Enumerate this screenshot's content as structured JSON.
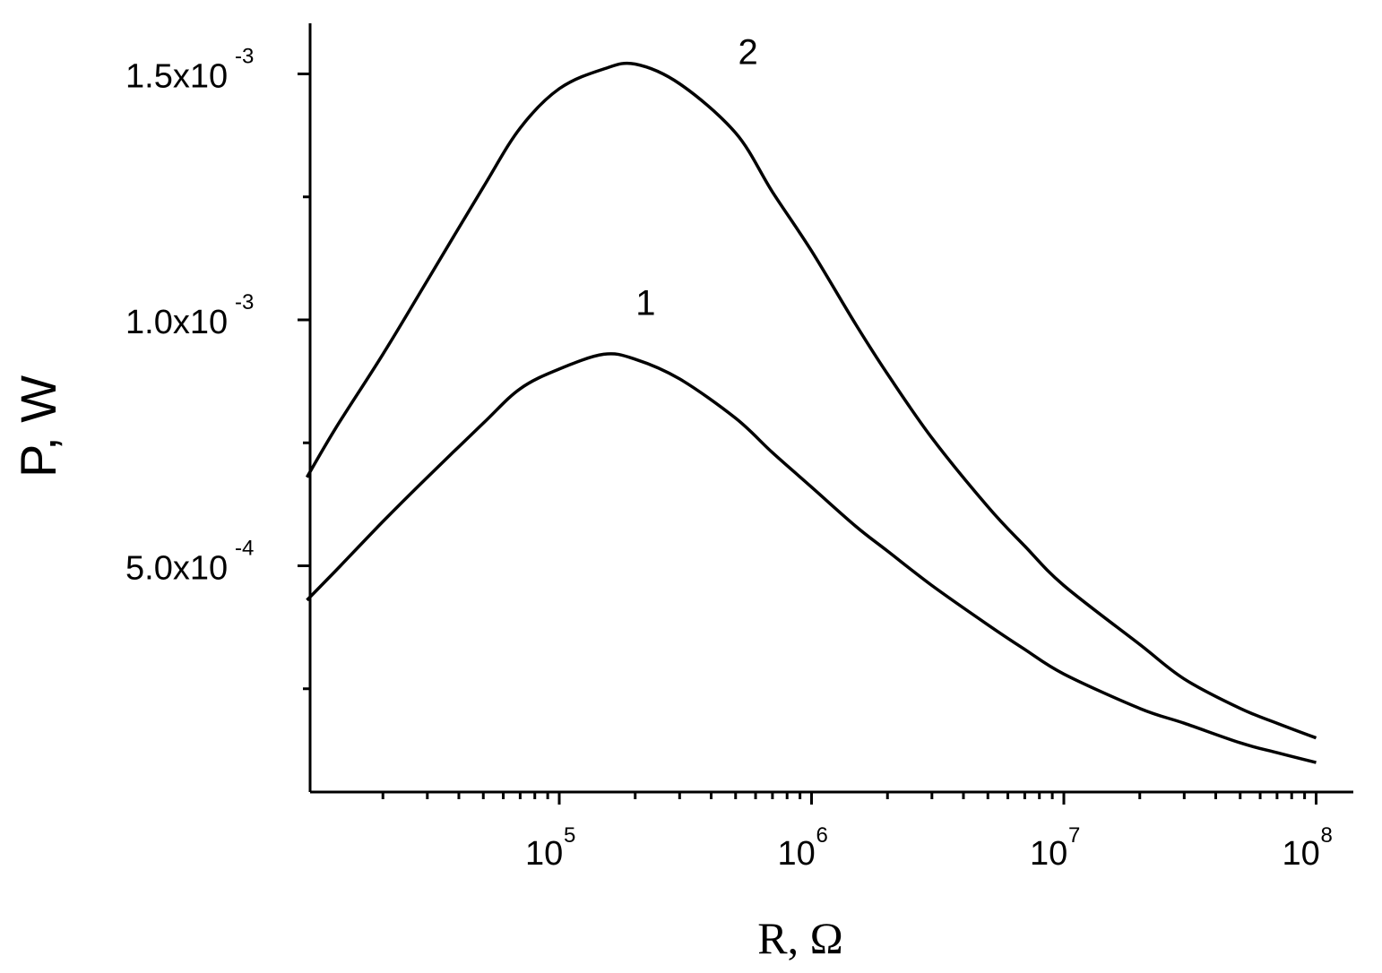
{
  "chart_data": {
    "type": "line",
    "xlabel": "R, Ω",
    "ylabel": "P, W",
    "xscale": "log",
    "xlim": [
      10000,
      100000000
    ],
    "ylim": [
      0.0001,
      0.0016
    ],
    "grid": false,
    "legend": "none",
    "x_ticks": [
      {
        "value": 100000,
        "base": "10",
        "exp": "5"
      },
      {
        "value": 1000000,
        "base": "10",
        "exp": "6"
      },
      {
        "value": 10000000,
        "base": "10",
        "exp": "7"
      },
      {
        "value": 100000000,
        "base": "10",
        "exp": "8"
      }
    ],
    "y_ticks": [
      {
        "value": 0.0005,
        "mantissa": "5.0x10",
        "exp": "-4"
      },
      {
        "value": 0.001,
        "mantissa": "1.0x10",
        "exp": "-3"
      },
      {
        "value": 0.0015,
        "mantissa": "1.5x10",
        "exp": "-3"
      }
    ],
    "y_minor_ticks": [
      0.00025,
      0.00075,
      0.00125
    ],
    "series": [
      {
        "name": "1",
        "color": "#000000",
        "points": [
          [
            10000,
            0.00043
          ],
          [
            13000,
            0.00049
          ],
          [
            20000,
            0.00059
          ],
          [
            30000,
            0.00068
          ],
          [
            50000,
            0.00079
          ],
          [
            70000,
            0.00086
          ],
          [
            100000,
            0.0009
          ],
          [
            150000,
            0.00093
          ],
          [
            200000,
            0.00092
          ],
          [
            300000,
            0.00088
          ],
          [
            500000,
            0.0008
          ],
          [
            700000,
            0.00073
          ],
          [
            1000000,
            0.00066
          ],
          [
            1500000,
            0.00058
          ],
          [
            2000000,
            0.00053
          ],
          [
            3000000,
            0.00046
          ],
          [
            5000000,
            0.00038
          ],
          [
            7000000,
            0.00033
          ],
          [
            10000000,
            0.00028
          ],
          [
            20000000,
            0.00021
          ],
          [
            30000000,
            0.00018
          ],
          [
            50000000,
            0.00014
          ],
          [
            70000000,
            0.00012
          ],
          [
            100000000,
            0.0001
          ]
        ]
      },
      {
        "name": "2",
        "color": "#000000",
        "points": [
          [
            10000,
            0.00068
          ],
          [
            13000,
            0.00078
          ],
          [
            20000,
            0.00093
          ],
          [
            30000,
            0.00108
          ],
          [
            50000,
            0.00127
          ],
          [
            70000,
            0.00139
          ],
          [
            100000,
            0.00147
          ],
          [
            150000,
            0.00151
          ],
          [
            200000,
            0.00152
          ],
          [
            300000,
            0.00148
          ],
          [
            500000,
            0.00138
          ],
          [
            700000,
            0.00126
          ],
          [
            1000000,
            0.00114
          ],
          [
            1500000,
            0.00099
          ],
          [
            2000000,
            0.00089
          ],
          [
            3000000,
            0.00076
          ],
          [
            5000000,
            0.00062
          ],
          [
            7000000,
            0.00054
          ],
          [
            10000000,
            0.00046
          ],
          [
            20000000,
            0.00034
          ],
          [
            30000000,
            0.00027
          ],
          [
            50000000,
            0.00021
          ],
          [
            70000000,
            0.00018
          ],
          [
            100000000,
            0.00015
          ]
        ]
      }
    ],
    "annotations": [
      {
        "text": "1",
        "x": 220000,
        "y": 0.00101
      },
      {
        "text": "2",
        "x": 560000,
        "y": 0.00152
      }
    ]
  }
}
